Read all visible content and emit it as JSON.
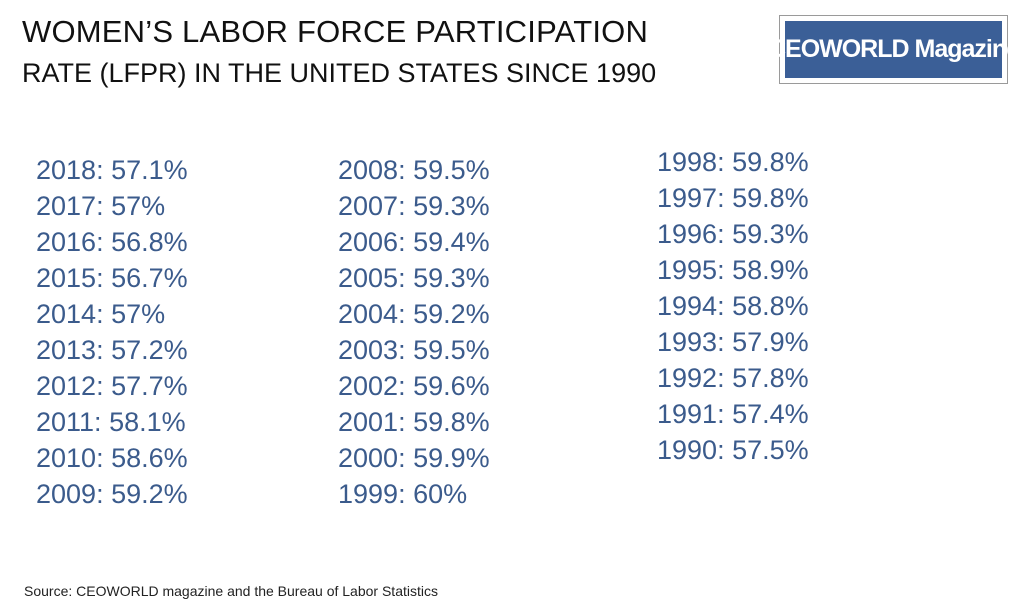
{
  "header": {
    "title_line1": "WOMEN’S LABOR FORCE PARTICIPATION",
    "title_line2": "RATE (LFPR) IN THE UNITED STATES SINCE 1990",
    "logo": "CEOWORLD Magazine"
  },
  "columns": [
    [
      "2018: 57.1%",
      "2017: 57%",
      "2016: 56.8%",
      "2015: 56.7%",
      "2014: 57%",
      "2013: 57.2%",
      "2012: 57.7%",
      "2011: 58.1%",
      "2010: 58.6%",
      "2009: 59.2%"
    ],
    [
      "2008: 59.5%",
      "2007: 59.3%",
      "2006: 59.4%",
      "2005: 59.3%",
      "2004: 59.2%",
      "2003: 59.5%",
      "2002: 59.6%",
      "2001: 59.8%",
      "2000: 59.9%",
      "1999: 60%"
    ],
    [
      "1998: 59.8%",
      "1997: 59.8%",
      "1996: 59.3%",
      "1995: 58.9%",
      "1994: 58.8%",
      "1993: 57.9%",
      "1992: 57.8%",
      "1991: 57.4%",
      "1990: 57.5%"
    ]
  ],
  "footer": {
    "source": "Source: CEOWORLD magazine and the Bureau of Labor Statistics"
  }
}
